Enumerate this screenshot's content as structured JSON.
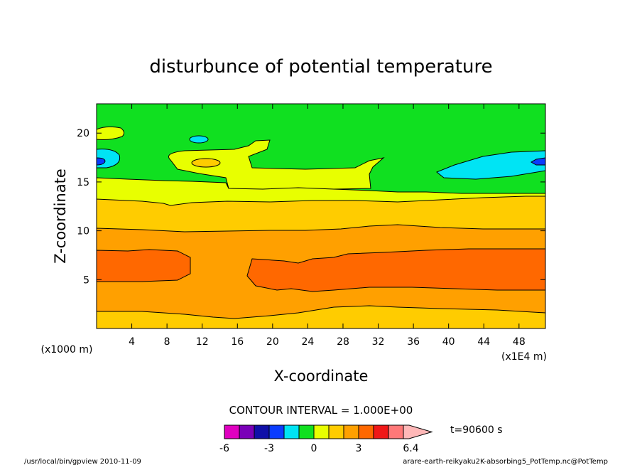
{
  "chart_data": {
    "type": "heatmap",
    "title": "disturbunce of potential temperature",
    "xlabel": "X-coordinate",
    "ylabel": "Z-coordinate",
    "x_unit": "(x1E4 m)",
    "y_unit": "(x1000 m)",
    "xlim": [
      0,
      51
    ],
    "ylim": [
      0,
      23
    ],
    "x_ticks": [
      4,
      8,
      12,
      16,
      20,
      24,
      28,
      32,
      36,
      40,
      44,
      48
    ],
    "y_ticks": [
      5,
      10,
      15,
      20
    ],
    "contour_interval_label": "CONTOUR INTERVAL = 1.000E+00",
    "time_label": "t=90600  s",
    "colorbar": {
      "levels": [
        -6,
        -5,
        -4,
        -3,
        -2,
        -1,
        0,
        1,
        2,
        3,
        4,
        5,
        6,
        6.4
      ],
      "tick_values": [
        -6,
        -3,
        0,
        3,
        6.4
      ],
      "tick_labels": [
        "-6",
        "-3",
        "0",
        "3",
        "6.4"
      ],
      "colors": [
        "#e000c0",
        "#7a00b8",
        "#1010a8",
        "#0a3cff",
        "#00e4f4",
        "#10e020",
        "#e8ff00",
        "#ffcc00",
        "#ffa000",
        "#ff6800",
        "#f01818",
        "#ff7878",
        "#ffb8b8"
      ]
    },
    "bands_description": [
      {
        "z_range": [
          0,
          2
        ],
        "value_range": [
          1,
          2
        ]
      },
      {
        "z_range": [
          2,
          5
        ],
        "value_range": [
          2,
          3
        ]
      },
      {
        "z_range": [
          5,
          8
        ],
        "value_range": [
          3,
          4
        ]
      },
      {
        "z_range": [
          8,
          10
        ],
        "value_range": [
          2,
          3
        ]
      },
      {
        "z_range": [
          10,
          13
        ],
        "value_range": [
          1,
          2
        ]
      },
      {
        "z_range": [
          13,
          17
        ],
        "value_range": [
          0,
          1
        ]
      },
      {
        "z_range": [
          17,
          23
        ],
        "value_range": [
          -1,
          0
        ]
      }
    ]
  },
  "footer": {
    "left": "/usr/local/bin/gpview  2010-11-09",
    "right": "arare-earth-reikyaku2K-absorbing5_PotTemp.nc@PotTemp"
  }
}
